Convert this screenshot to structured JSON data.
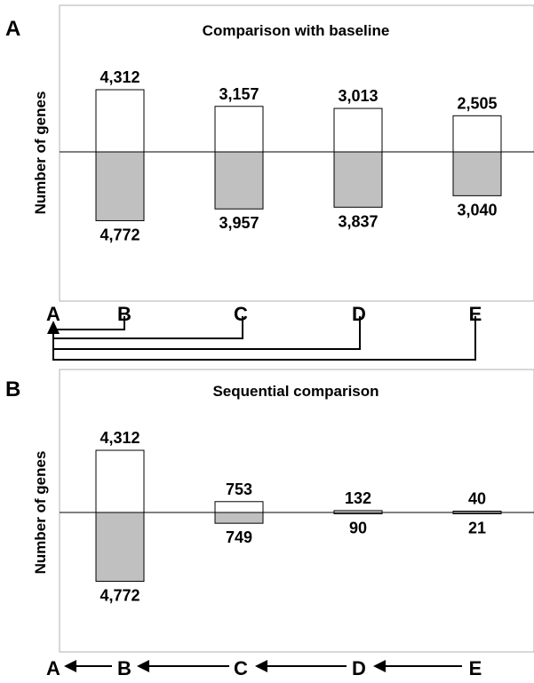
{
  "chart_data": [
    {
      "type": "bar",
      "panel_label": "A",
      "title": "Comparison with baseline",
      "ylabel": "Number of genes",
      "ylim": [
        -6500,
        6500
      ],
      "series": [
        {
          "values": [
            4312,
            3157,
            3013,
            2505
          ],
          "color": "#ffffff"
        },
        {
          "values": [
            -4772,
            -3957,
            -3837,
            -3040
          ],
          "color": "#c0c0c0"
        }
      ],
      "value_labels": {
        "up": [
          "4,312",
          "3,157",
          "3,013",
          "2,505"
        ],
        "down": [
          "4,772",
          "3,957",
          "3,837",
          "3,040"
        ]
      },
      "scheme": {
        "letters": [
          "A",
          "B",
          "C",
          "D",
          "E"
        ]
      }
    },
    {
      "type": "bar",
      "panel_label": "B",
      "title": "Sequential comparison",
      "ylabel": "Number of genes",
      "ylim": [
        -6500,
        6500
      ],
      "series": [
        {
          "values": [
            4312,
            753,
            132,
            40
          ],
          "color": "#ffffff"
        },
        {
          "values": [
            -4772,
            -749,
            -90,
            -21
          ],
          "color": "#c0c0c0"
        }
      ],
      "value_labels": {
        "up": [
          "4,312",
          "753",
          "132",
          "40"
        ],
        "down": [
          "4,772",
          "749",
          "90",
          "21"
        ]
      },
      "scheme": {
        "letters": [
          "A",
          "B",
          "C",
          "D",
          "E"
        ]
      }
    }
  ]
}
